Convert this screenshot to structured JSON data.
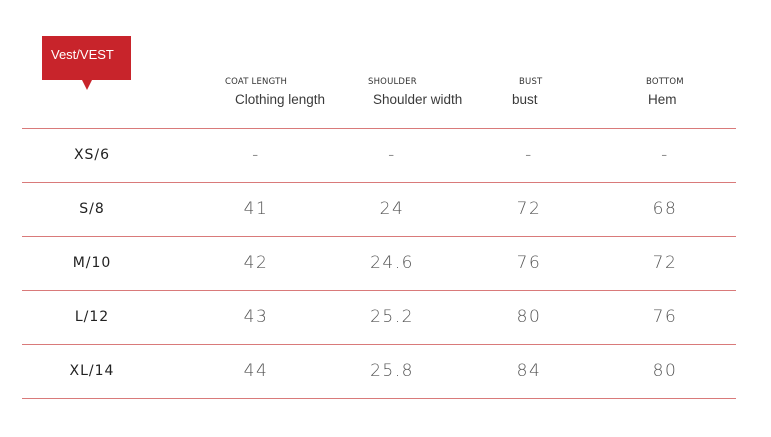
{
  "tag": {
    "label": "Vest/VEST",
    "color": "#c8242b"
  },
  "columns": [
    {
      "code": "COAT LENGTH",
      "desc": "Clothing length"
    },
    {
      "code": "SHOULDER",
      "desc": "Shoulder width"
    },
    {
      "code": "BUST",
      "desc": "bust"
    },
    {
      "code": "BOTTOM",
      "desc": "Hem"
    }
  ],
  "rows": [
    {
      "size": "XS/6",
      "length": "-",
      "shoulder": "-",
      "bust": "-",
      "bottom": "-"
    },
    {
      "size": "S/8",
      "length": "41",
      "shoulder": "24",
      "bust": "72",
      "bottom": "68"
    },
    {
      "size": "M/10",
      "length": "42",
      "shoulder": "24.6",
      "bust": "76",
      "bottom": "72"
    },
    {
      "size": "L/12",
      "length": "43",
      "shoulder": "25.2",
      "bust": "80",
      "bottom": "76"
    },
    {
      "size": "XL/14",
      "length": "44",
      "shoulder": "25.8",
      "bust": "84",
      "bottom": "80"
    }
  ],
  "colors": {
    "rule": "#d97a7a",
    "accent": "#c8242b"
  }
}
